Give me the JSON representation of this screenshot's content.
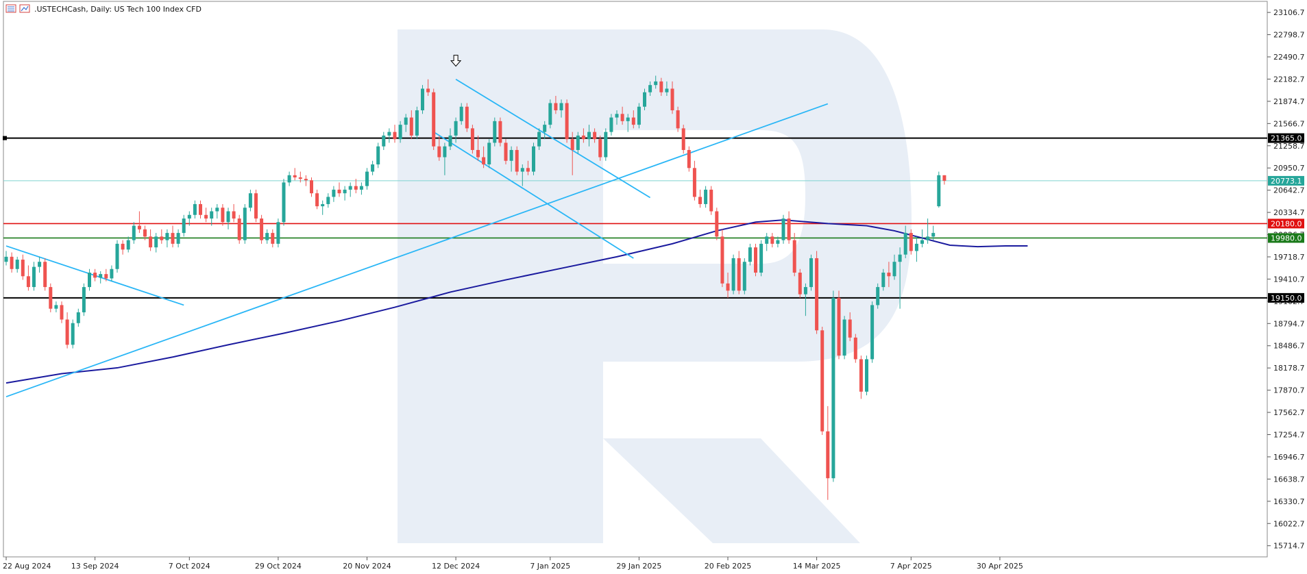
{
  "header": {
    "symbol": ".USTECHCash",
    "timeframe": "Daily",
    "description": "US Tech 100 Index CFD"
  },
  "chart_data": {
    "type": "candlestick",
    "ylim": [
      15560,
      23260
    ],
    "y_ticks": [
      23106.7,
      22798.7,
      22490.7,
      22182.7,
      21874.7,
      21566.7,
      21258.7,
      20950.7,
      20642.7,
      20334.7,
      20026.7,
      19718.7,
      19410.7,
      19102.7,
      18794.7,
      18486.7,
      18178.7,
      17870.7,
      17562.7,
      17254.7,
      16946.7,
      16638.7,
      16330.7,
      16022.7,
      15714.7
    ],
    "x_labels": [
      "22 Aug 2024",
      "13 Sep 2024",
      "7 Oct 2024",
      "29 Oct 2024",
      "20 Nov 2024",
      "12 Dec 2024",
      "7 Jan 2025",
      "29 Jan 2025",
      "20 Feb 2025",
      "14 Mar 2025",
      "7 Apr 2025",
      "30 Apr 2025"
    ],
    "x_label_index": [
      0,
      16,
      33,
      49,
      65,
      81,
      98,
      114,
      130,
      146,
      163,
      179
    ],
    "levels": [
      {
        "label": "21365.0",
        "value": 21365.0,
        "color": "#000000"
      },
      {
        "label": "20180.0",
        "value": 20180.0,
        "color": "#e01010"
      },
      {
        "label": "19980.0",
        "value": 19980.0,
        "color": "#1a7a1a"
      },
      {
        "label": "19150.0",
        "value": 19150.0,
        "color": "#000000"
      }
    ],
    "current_price": {
      "label": "20773.1",
      "value": 20773.1,
      "color": "#26a69a"
    },
    "colors": {
      "up": "#26a69a",
      "down": "#ef5350",
      "ma": "#1a1a9e",
      "trend": "#29b6f6"
    },
    "candles": [
      [
        19650,
        19800,
        19600,
        19720
      ],
      [
        19720,
        19780,
        19500,
        19550
      ],
      [
        19550,
        19720,
        19500,
        19680
      ],
      [
        19680,
        19750,
        19400,
        19450
      ],
      [
        19450,
        19600,
        19250,
        19300
      ],
      [
        19300,
        19650,
        19250,
        19580
      ],
      [
        19580,
        19720,
        19500,
        19650
      ],
      [
        19650,
        19700,
        19250,
        19300
      ],
      [
        19300,
        19350,
        18950,
        19000
      ],
      [
        19000,
        19100,
        18950,
        19050
      ],
      [
        19050,
        19100,
        18800,
        18850
      ],
      [
        18850,
        18950,
        18450,
        18500
      ],
      [
        18500,
        18850,
        18450,
        18800
      ],
      [
        18800,
        19000,
        18750,
        18950
      ],
      [
        18950,
        19350,
        18900,
        19300
      ],
      [
        19300,
        19550,
        19250,
        19500
      ],
      [
        19500,
        19550,
        19380,
        19430
      ],
      [
        19430,
        19520,
        19350,
        19480
      ],
      [
        19480,
        19550,
        19380,
        19420
      ],
      [
        19420,
        19600,
        19380,
        19550
      ],
      [
        19550,
        19950,
        19500,
        19900
      ],
      [
        19900,
        19950,
        19750,
        19820
      ],
      [
        19820,
        20000,
        19780,
        19950
      ],
      [
        19950,
        20200,
        19900,
        20150
      ],
      [
        20150,
        20350,
        20050,
        20100
      ],
      [
        20100,
        20150,
        19950,
        20000
      ],
      [
        20000,
        20100,
        19800,
        19850
      ],
      [
        19850,
        20050,
        19780,
        20000
      ],
      [
        20000,
        20100,
        19900,
        19950
      ],
      [
        19950,
        20100,
        19850,
        20050
      ],
      [
        20050,
        20150,
        19850,
        19900
      ],
      [
        19900,
        20100,
        19850,
        20050
      ],
      [
        20050,
        20300,
        20000,
        20250
      ],
      [
        20250,
        20350,
        20150,
        20300
      ],
      [
        20300,
        20500,
        20250,
        20450
      ],
      [
        20450,
        20500,
        20250,
        20300
      ],
      [
        20300,
        20400,
        20200,
        20250
      ],
      [
        20250,
        20400,
        20150,
        20350
      ],
      [
        20350,
        20450,
        20250,
        20400
      ],
      [
        20400,
        20450,
        20150,
        20200
      ],
      [
        20200,
        20400,
        20100,
        20350
      ],
      [
        20350,
        20450,
        20200,
        20250
      ],
      [
        20250,
        20300,
        19900,
        19950
      ],
      [
        19950,
        20450,
        19900,
        20400
      ],
      [
        20400,
        20650,
        20350,
        20600
      ],
      [
        20600,
        20650,
        20200,
        20250
      ],
      [
        20250,
        20300,
        19900,
        19950
      ],
      [
        19950,
        20100,
        19900,
        20050
      ],
      [
        20050,
        20100,
        19850,
        19900
      ],
      [
        19900,
        20250,
        19850,
        20200
      ],
      [
        20200,
        20800,
        20150,
        20750
      ],
      [
        20750,
        20900,
        20700,
        20850
      ],
      [
        20850,
        20950,
        20780,
        20820
      ],
      [
        20820,
        20900,
        20750,
        20800
      ],
      [
        20800,
        20850,
        20700,
        20780
      ],
      [
        20780,
        20820,
        20550,
        20600
      ],
      [
        20600,
        20650,
        20380,
        20420
      ],
      [
        20420,
        20500,
        20300,
        20450
      ],
      [
        20450,
        20600,
        20400,
        20550
      ],
      [
        20550,
        20700,
        20480,
        20650
      ],
      [
        20650,
        20750,
        20550,
        20600
      ],
      [
        20600,
        20700,
        20500,
        20650
      ],
      [
        20650,
        20750,
        20550,
        20700
      ],
      [
        20700,
        20800,
        20600,
        20650
      ],
      [
        20650,
        20750,
        20580,
        20700
      ],
      [
        20700,
        20950,
        20650,
        20900
      ],
      [
        20900,
        21050,
        20850,
        21000
      ],
      [
        21000,
        21300,
        20950,
        21250
      ],
      [
        21250,
        21450,
        21200,
        21400
      ],
      [
        21400,
        21500,
        21300,
        21450
      ],
      [
        21450,
        21550,
        21300,
        21350
      ],
      [
        21350,
        21600,
        21300,
        21550
      ],
      [
        21550,
        21700,
        21450,
        21650
      ],
      [
        21650,
        21750,
        21350,
        21400
      ],
      [
        21400,
        21800,
        21350,
        21750
      ],
      [
        21750,
        22100,
        21700,
        22050
      ],
      [
        22050,
        22180,
        21950,
        22000
      ],
      [
        22000,
        22050,
        21200,
        21250
      ],
      [
        21250,
        21400,
        21050,
        21100
      ],
      [
        21100,
        21300,
        20850,
        21250
      ],
      [
        21250,
        21500,
        21200,
        21400
      ],
      [
        21400,
        21650,
        21300,
        21600
      ],
      [
        21600,
        21850,
        21550,
        21800
      ],
      [
        21800,
        21850,
        21450,
        21500
      ],
      [
        21500,
        21550,
        21150,
        21200
      ],
      [
        21200,
        21400,
        21050,
        21100
      ],
      [
        21100,
        21250,
        20950,
        21000
      ],
      [
        21000,
        21350,
        20950,
        21300
      ],
      [
        21300,
        21650,
        21250,
        21600
      ],
      [
        21600,
        21650,
        21250,
        21300
      ],
      [
        21300,
        21350,
        21000,
        21050
      ],
      [
        21050,
        21250,
        20900,
        21200
      ],
      [
        21200,
        21250,
        20850,
        20900
      ],
      [
        20900,
        21000,
        20700,
        20950
      ],
      [
        20950,
        21050,
        20850,
        20900
      ],
      [
        20900,
        21300,
        20850,
        21250
      ],
      [
        21250,
        21500,
        21200,
        21450
      ],
      [
        21450,
        21600,
        21350,
        21550
      ],
      [
        21550,
        21900,
        21500,
        21850
      ],
      [
        21850,
        21950,
        21700,
        21750
      ],
      [
        21750,
        21900,
        21650,
        21850
      ],
      [
        21850,
        21900,
        21300,
        21350
      ],
      [
        21350,
        21450,
        20850,
        21200
      ],
      [
        21200,
        21450,
        21150,
        21400
      ],
      [
        21400,
        21500,
        21300,
        21350
      ],
      [
        21350,
        21550,
        21250,
        21450
      ],
      [
        21450,
        21500,
        21300,
        21350
      ],
      [
        21350,
        21400,
        21050,
        21100
      ],
      [
        21100,
        21500,
        21050,
        21450
      ],
      [
        21450,
        21700,
        21400,
        21650
      ],
      [
        21650,
        21750,
        21550,
        21700
      ],
      [
        21700,
        21800,
        21550,
        21600
      ],
      [
        21600,
        21700,
        21450,
        21650
      ],
      [
        21650,
        21750,
        21500,
        21550
      ],
      [
        21550,
        21850,
        21500,
        21800
      ],
      [
        21800,
        22050,
        21750,
        22000
      ],
      [
        22000,
        22150,
        21950,
        22100
      ],
      [
        22100,
        22230,
        22050,
        22150
      ],
      [
        22150,
        22200,
        21950,
        22000
      ],
      [
        22000,
        22150,
        21950,
        22050
      ],
      [
        22050,
        22150,
        21700,
        21750
      ],
      [
        21750,
        21800,
        21450,
        21500
      ],
      [
        21500,
        21550,
        21150,
        21200
      ],
      [
        21200,
        21250,
        20900,
        20950
      ],
      [
        20950,
        21050,
        20500,
        20550
      ],
      [
        20550,
        20650,
        20400,
        20450
      ],
      [
        20450,
        20700,
        20400,
        20650
      ],
      [
        20650,
        20700,
        20300,
        20350
      ],
      [
        20350,
        20400,
        19950,
        20000
      ],
      [
        20000,
        20100,
        19300,
        19350
      ],
      [
        19350,
        19500,
        19150,
        19250
      ],
      [
        19250,
        19750,
        19200,
        19700
      ],
      [
        19700,
        19800,
        19200,
        19250
      ],
      [
        19250,
        19700,
        19200,
        19650
      ],
      [
        19650,
        19900,
        19600,
        19850
      ],
      [
        19850,
        19900,
        19450,
        19500
      ],
      [
        19500,
        19950,
        19450,
        19900
      ],
      [
        19900,
        20050,
        19800,
        20000
      ],
      [
        20000,
        20050,
        19850,
        19900
      ],
      [
        19900,
        20000,
        19850,
        19950
      ],
      [
        19950,
        20300,
        19900,
        20250
      ],
      [
        20250,
        20350,
        19900,
        19950
      ],
      [
        19950,
        20050,
        19450,
        19500
      ],
      [
        19500,
        19550,
        19150,
        19200
      ],
      [
        19200,
        19350,
        18900,
        19300
      ],
      [
        19300,
        19750,
        19250,
        19700
      ],
      [
        19700,
        19800,
        18650,
        18700
      ],
      [
        18700,
        18750,
        17250,
        17300
      ],
      [
        17300,
        17650,
        16350,
        16650
      ],
      [
        16650,
        19250,
        16600,
        19150
      ],
      [
        19150,
        19250,
        18300,
        18350
      ],
      [
        18350,
        18900,
        18300,
        18850
      ],
      [
        18850,
        18950,
        18550,
        18600
      ],
      [
        18600,
        18650,
        18250,
        18300
      ],
      [
        18300,
        18350,
        17750,
        17850
      ],
      [
        17850,
        18350,
        17800,
        18300
      ],
      [
        18300,
        19100,
        18250,
        19050
      ],
      [
        19050,
        19350,
        19000,
        19300
      ],
      [
        19300,
        19550,
        19250,
        19500
      ],
      [
        19500,
        19650,
        19300,
        19450
      ],
      [
        19450,
        19750,
        19400,
        19650
      ],
      [
        19650,
        19850,
        19000,
        19750
      ],
      [
        19750,
        20150,
        19700,
        20050
      ],
      [
        20050,
        20100,
        19750,
        19800
      ],
      [
        19800,
        20000,
        19650,
        19900
      ],
      [
        19900,
        20100,
        19850,
        19950
      ],
      [
        19950,
        20250,
        19900,
        20000
      ],
      [
        20000,
        20150,
        19950,
        20050
      ],
      [
        20420,
        20900,
        20400,
        20850
      ],
      [
        20850,
        20850,
        20720,
        20773
      ]
    ],
    "ma_points": [
      [
        0,
        17970
      ],
      [
        10,
        18100
      ],
      [
        20,
        18180
      ],
      [
        30,
        18330
      ],
      [
        40,
        18500
      ],
      [
        50,
        18660
      ],
      [
        60,
        18830
      ],
      [
        70,
        19020
      ],
      [
        80,
        19230
      ],
      [
        90,
        19400
      ],
      [
        100,
        19560
      ],
      [
        110,
        19720
      ],
      [
        120,
        19900
      ],
      [
        128,
        20080
      ],
      [
        135,
        20200
      ],
      [
        140,
        20230
      ],
      [
        148,
        20180
      ],
      [
        155,
        20150
      ],
      [
        160,
        20080
      ],
      [
        165,
        19980
      ],
      [
        170,
        19880
      ],
      [
        175,
        19860
      ],
      [
        180,
        19870
      ],
      [
        184,
        19870
      ]
    ],
    "trendlines": [
      [
        [
          0,
          17780
        ],
        [
          148,
          21840
        ]
      ],
      [
        [
          0,
          19870
        ],
        [
          32,
          19050
        ]
      ],
      [
        [
          81,
          22180
        ],
        [
          116,
          20540
        ]
      ],
      [
        [
          77,
          21450
        ],
        [
          113,
          19700
        ]
      ]
    ],
    "marker": {
      "index": 81,
      "value": 22400
    }
  }
}
